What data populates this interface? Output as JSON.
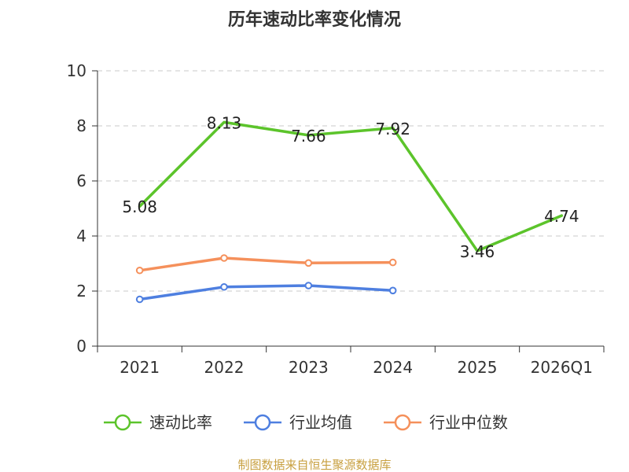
{
  "chart_data": {
    "type": "line",
    "title": "历年速动比率变化情况",
    "categories": [
      "2021",
      "2022",
      "2023",
      "2024",
      "2025",
      "2026Q1"
    ],
    "ylim": [
      0,
      10
    ],
    "yticks": [
      0,
      2,
      4,
      6,
      8,
      10
    ],
    "grid": true,
    "legend_position": "bottom",
    "series": [
      {
        "name": "速动比率",
        "color": "#5cc42b",
        "values": [
          5.08,
          8.13,
          7.66,
          7.92,
          3.46,
          4.74
        ],
        "show_labels": true,
        "markers": false
      },
      {
        "name": "行业均值",
        "color": "#4e7fe0",
        "values": [
          1.7,
          2.15,
          2.2,
          2.02,
          null,
          null
        ],
        "show_labels": false,
        "markers": true
      },
      {
        "name": "行业中位数",
        "color": "#f5905b",
        "values": [
          2.75,
          3.2,
          3.02,
          3.04,
          null,
          null
        ],
        "show_labels": false,
        "markers": true
      }
    ]
  },
  "source": "制图数据来自恒生聚源数据库"
}
